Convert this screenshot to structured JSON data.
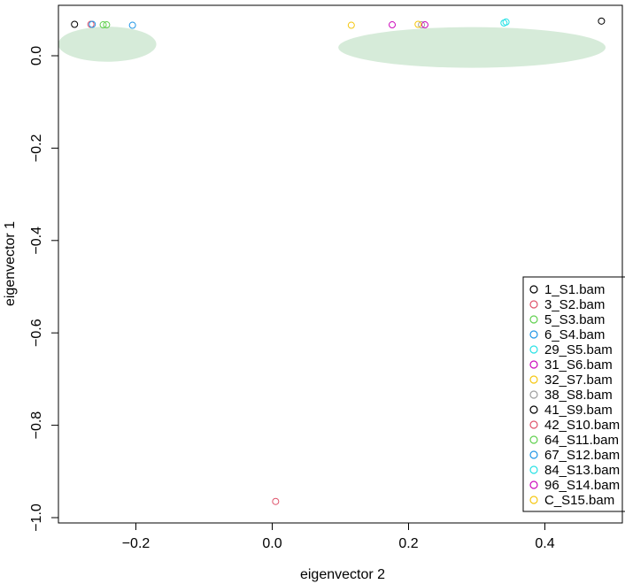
{
  "chart_data": {
    "type": "scatter",
    "title": "",
    "xlabel": "eigenvector 2",
    "ylabel": "eigenvector 1",
    "xlim": [
      -0.31,
      0.5
    ],
    "ylim": [
      -1.0,
      0.1
    ],
    "xticks": [
      -0.2,
      0.0,
      0.2,
      0.4
    ],
    "xtick_labels": [
      "−0.2",
      "0.0",
      "0.2",
      "0.4"
    ],
    "yticks": [
      -1.0,
      -0.8,
      -0.6,
      -0.4,
      -0.2,
      0.0
    ],
    "ytick_labels": [
      "−1.0",
      "−0.8",
      "−0.6",
      "−0.4",
      "−0.2",
      "0.0"
    ],
    "grid": false,
    "legend_position": "bottom-right",
    "marker": "o",
    "series": [
      {
        "name": "1_S1.bam",
        "color": "#000000",
        "points": [
          [
            -0.29,
            0.068
          ]
        ]
      },
      {
        "name": "3_S2.bam",
        "color": "#DF536B",
        "points": [
          [
            0.005,
            -0.965
          ]
        ]
      },
      {
        "name": "5_S3.bam",
        "color": "#61D04F",
        "points": [
          [
            -0.248,
            0.067
          ]
        ]
      },
      {
        "name": "6_S4.bam",
        "color": "#2297E6",
        "points": [
          [
            -0.205,
            0.066
          ]
        ]
      },
      {
        "name": "29_S5.bam",
        "color": "#28E2E5",
        "points": [
          [
            0.343,
            0.073
          ]
        ]
      },
      {
        "name": "31_S6.bam",
        "color": "#CD0BBC",
        "points": [
          [
            0.176,
            0.067
          ]
        ]
      },
      {
        "name": "32_S7.bam",
        "color": "#F5C710",
        "points": [
          [
            0.116,
            0.066
          ]
        ]
      },
      {
        "name": "38_S8.bam",
        "color": "#9E9E9E",
        "points": [
          [
            0.219,
            0.067
          ]
        ]
      },
      {
        "name": "41_S9.bam",
        "color": "#000000",
        "points": [
          [
            0.483,
            0.075
          ]
        ]
      },
      {
        "name": "42_S10.bam",
        "color": "#DF536B",
        "points": [
          [
            -0.266,
            0.068
          ]
        ]
      },
      {
        "name": "64_S11.bam",
        "color": "#61D04F",
        "points": [
          [
            -0.243,
            0.067
          ]
        ]
      },
      {
        "name": "67_S12.bam",
        "color": "#2297E6",
        "points": [
          [
            -0.264,
            0.068
          ]
        ]
      },
      {
        "name": "84_S13.bam",
        "color": "#28E2E5",
        "points": [
          [
            0.34,
            0.071
          ]
        ]
      },
      {
        "name": "96_S14.bam",
        "color": "#CD0BBC",
        "points": [
          [
            0.224,
            0.067
          ]
        ]
      },
      {
        "name": "C_S15.bam",
        "color": "#F5C710",
        "points": [
          [
            0.214,
            0.068
          ]
        ]
      }
    ],
    "annotations": [
      {
        "type": "ellipse",
        "label": "cluster-left",
        "cx": -0.242,
        "cy": 0.025,
        "rx": 0.072,
        "ry": 0.038,
        "fill": "#d6ebd9"
      },
      {
        "type": "ellipse",
        "label": "cluster-right",
        "cx": 0.293,
        "cy": 0.018,
        "rx": 0.196,
        "ry": 0.044,
        "fill": "#d6ebd9"
      }
    ]
  }
}
